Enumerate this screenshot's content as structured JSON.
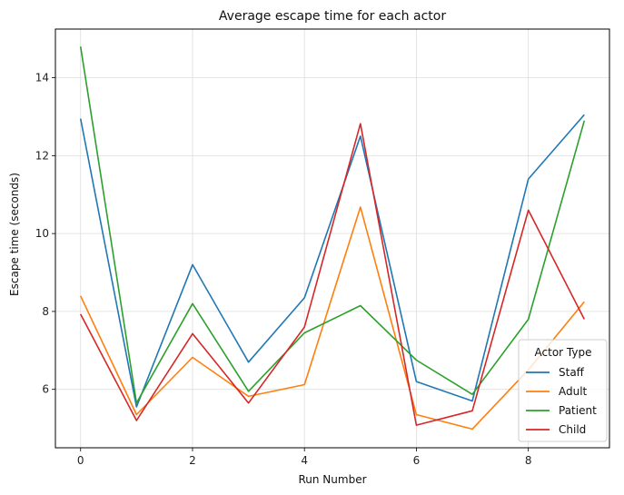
{
  "chart_data": {
    "type": "line",
    "title": "Average escape time for each actor",
    "xlabel": "Run Number",
    "ylabel": "Escape time (seconds)",
    "x": [
      0,
      1,
      2,
      3,
      4,
      5,
      6,
      7,
      8,
      9
    ],
    "xlim": [
      -0.45,
      9.45
    ],
    "ylim": [
      4.5,
      15.25
    ],
    "xticks": [
      0,
      2,
      4,
      6,
      8
    ],
    "yticks": [
      6,
      8,
      10,
      12,
      14
    ],
    "grid": true,
    "legend": {
      "title": "Actor Type",
      "placement": "bottom-right"
    },
    "series": [
      {
        "name": "Staff",
        "color": "#1f77b4",
        "values": [
          12.95,
          5.55,
          9.2,
          6.7,
          8.35,
          12.5,
          6.2,
          5.7,
          11.4,
          13.05
        ]
      },
      {
        "name": "Adult",
        "color": "#ff7f0e",
        "values": [
          8.4,
          5.35,
          6.82,
          5.82,
          6.12,
          10.68,
          5.35,
          4.98,
          6.5,
          8.25
        ]
      },
      {
        "name": "Patient",
        "color": "#2ca02c",
        "values": [
          14.8,
          5.65,
          8.2,
          5.95,
          7.45,
          8.15,
          6.75,
          5.87,
          7.8,
          12.9
        ]
      },
      {
        "name": "Child",
        "color": "#d62728",
        "values": [
          7.93,
          5.2,
          7.43,
          5.65,
          7.6,
          12.82,
          5.08,
          5.45,
          10.6,
          7.8
        ]
      }
    ]
  }
}
